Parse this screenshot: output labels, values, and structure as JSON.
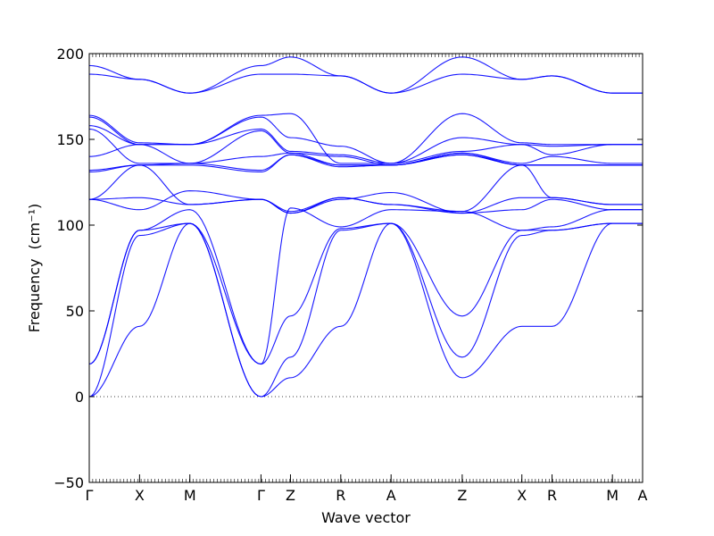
{
  "chart_data": {
    "type": "line",
    "xlabel": "Wave vector",
    "ylabel": "Frequency",
    "ylabel_unit": "(cm⁻¹)",
    "ylim": [
      -50,
      200
    ],
    "yticks": [
      -50,
      0,
      50,
      100,
      150,
      200
    ],
    "zero_line": true,
    "grid": false,
    "color": "#0000ff",
    "kpath": [
      {
        "label": "Γ",
        "pos": 0.0
      },
      {
        "label": "X",
        "pos": 0.5
      },
      {
        "label": "M",
        "pos": 1.0
      },
      {
        "label": "Γ",
        "pos": 1.707
      },
      {
        "label": "Z",
        "pos": 2.0
      },
      {
        "label": "R",
        "pos": 2.5
      },
      {
        "label": "A",
        "pos": 3.0
      },
      {
        "label": "Z",
        "pos": 3.707
      },
      {
        "label": "X",
        "pos": 4.3
      },
      {
        "label": "R",
        "pos": 4.6
      },
      {
        "label": "M",
        "pos": 5.2
      },
      {
        "label": "A",
        "pos": 5.5
      }
    ],
    "series": [
      {
        "values": [
          193,
          185,
          177,
          193,
          198,
          187,
          177,
          198,
          185,
          187,
          177,
          177
        ]
      },
      {
        "values": [
          188,
          185,
          177,
          188,
          188,
          187,
          177,
          188,
          185,
          187,
          177,
          177
        ]
      },
      {
        "values": [
          164,
          148,
          147,
          164,
          165,
          136,
          136,
          165,
          148,
          147,
          147,
          147
        ]
      },
      {
        "values": [
          163,
          147,
          147,
          163,
          151,
          146,
          136,
          151,
          147,
          146,
          147,
          147
        ]
      },
      {
        "values": [
          158,
          147,
          147,
          156,
          143,
          141,
          136,
          143,
          147,
          141,
          147,
          147
        ]
      },
      {
        "values": [
          156,
          136,
          136,
          155,
          142,
          140,
          135,
          142,
          136,
          140,
          136,
          136
        ]
      },
      {
        "values": [
          140,
          147,
          136,
          140,
          142,
          135,
          135,
          142,
          135,
          135,
          135,
          135
        ]
      },
      {
        "values": [
          132,
          135,
          136,
          132,
          141,
          135,
          135,
          141,
          135,
          135,
          135,
          135
        ]
      },
      {
        "values": [
          131,
          135,
          135,
          131,
          141,
          134,
          135,
          141,
          135,
          135,
          135,
          135
        ]
      },
      {
        "values": [
          115,
          135,
          112,
          115,
          108,
          116,
          112,
          108,
          135,
          116,
          112,
          112
        ]
      },
      {
        "values": [
          115,
          116,
          112,
          115,
          107,
          116,
          112,
          107,
          116,
          116,
          112,
          112
        ]
      },
      {
        "values": [
          115,
          109,
          120,
          115,
          107,
          115,
          119,
          107,
          109,
          115,
          109,
          109
        ]
      },
      {
        "values": [
          19,
          97,
          109,
          19,
          110,
          99,
          109,
          108,
          97,
          99,
          109,
          109
        ]
      },
      {
        "values": [
          19,
          97,
          101,
          19,
          47,
          98,
          101,
          47,
          97,
          97,
          101,
          101
        ]
      },
      {
        "values": [
          0,
          94,
          101,
          0,
          23,
          97,
          101,
          23,
          94,
          97,
          101,
          101
        ]
      },
      {
        "values": [
          0,
          41,
          101,
          0,
          11,
          41,
          101,
          11,
          41,
          41,
          101,
          101
        ]
      }
    ]
  }
}
